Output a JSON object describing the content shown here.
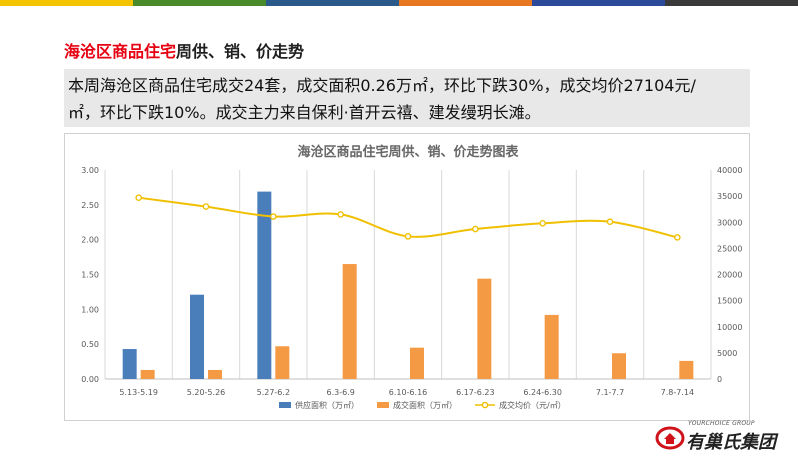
{
  "page": {
    "title_highlight": "海沧区商品住宅",
    "title_rest": "周供、销、价走势",
    "summary_line1": "本周海沧区商品住宅成交24套，成交面积0.26万㎡，环比下跌30%，成交均价27104元/",
    "summary_line2": "㎡，环比下跌10%。成交主力来自保利·首开云禧、建发缦玥长滩。",
    "brand_en": "YOURCHOICE GROUP",
    "brand_cn": "有巢氏集团",
    "topbar_colors": [
      "#f5c400",
      "#4a8a2a",
      "#2b5a8a",
      "#e87722",
      "#2b4a9a",
      "#3a3a3a"
    ]
  },
  "chart_data": {
    "type": "bar",
    "title": "海沧区商品住宅周供、销、价走势图表",
    "categories": [
      "5.13-5.19",
      "5.20-5.26",
      "5.27-6.2",
      "6.3-6.9",
      "6.10-6.16",
      "6.17-6.23",
      "6.24-6.30",
      "7.1-7.7",
      "7.8-7.14"
    ],
    "series": [
      {
        "name": "供应面积（万㎡）",
        "type": "bar",
        "axis": "left",
        "color": "#4a7ebb",
        "values": [
          0.43,
          1.21,
          2.69,
          0,
          0,
          0,
          0,
          0,
          0
        ]
      },
      {
        "name": "成交面积（万㎡）",
        "type": "bar",
        "axis": "left",
        "color": "#f59a44",
        "values": [
          0.13,
          0.13,
          0.47,
          1.65,
          0.45,
          1.44,
          0.92,
          0.37,
          0.26
        ]
      },
      {
        "name": "成交均价（元/㎡）",
        "type": "line",
        "axis": "right",
        "color": "#f0c000",
        "values": [
          34700,
          33000,
          31100,
          31500,
          27300,
          28700,
          29800,
          30100,
          27104
        ]
      }
    ],
    "ylim_left": [
      0,
      3
    ],
    "yticks_left": [
      "0.00",
      "0.50",
      "1.00",
      "1.50",
      "2.00",
      "2.50",
      "3.00"
    ],
    "ylim_right": [
      0,
      40000
    ],
    "yticks_right": [
      "0",
      "5000",
      "10000",
      "15000",
      "20000",
      "25000",
      "30000",
      "35000",
      "40000"
    ],
    "grid": "vertical",
    "legend": "bottom"
  }
}
